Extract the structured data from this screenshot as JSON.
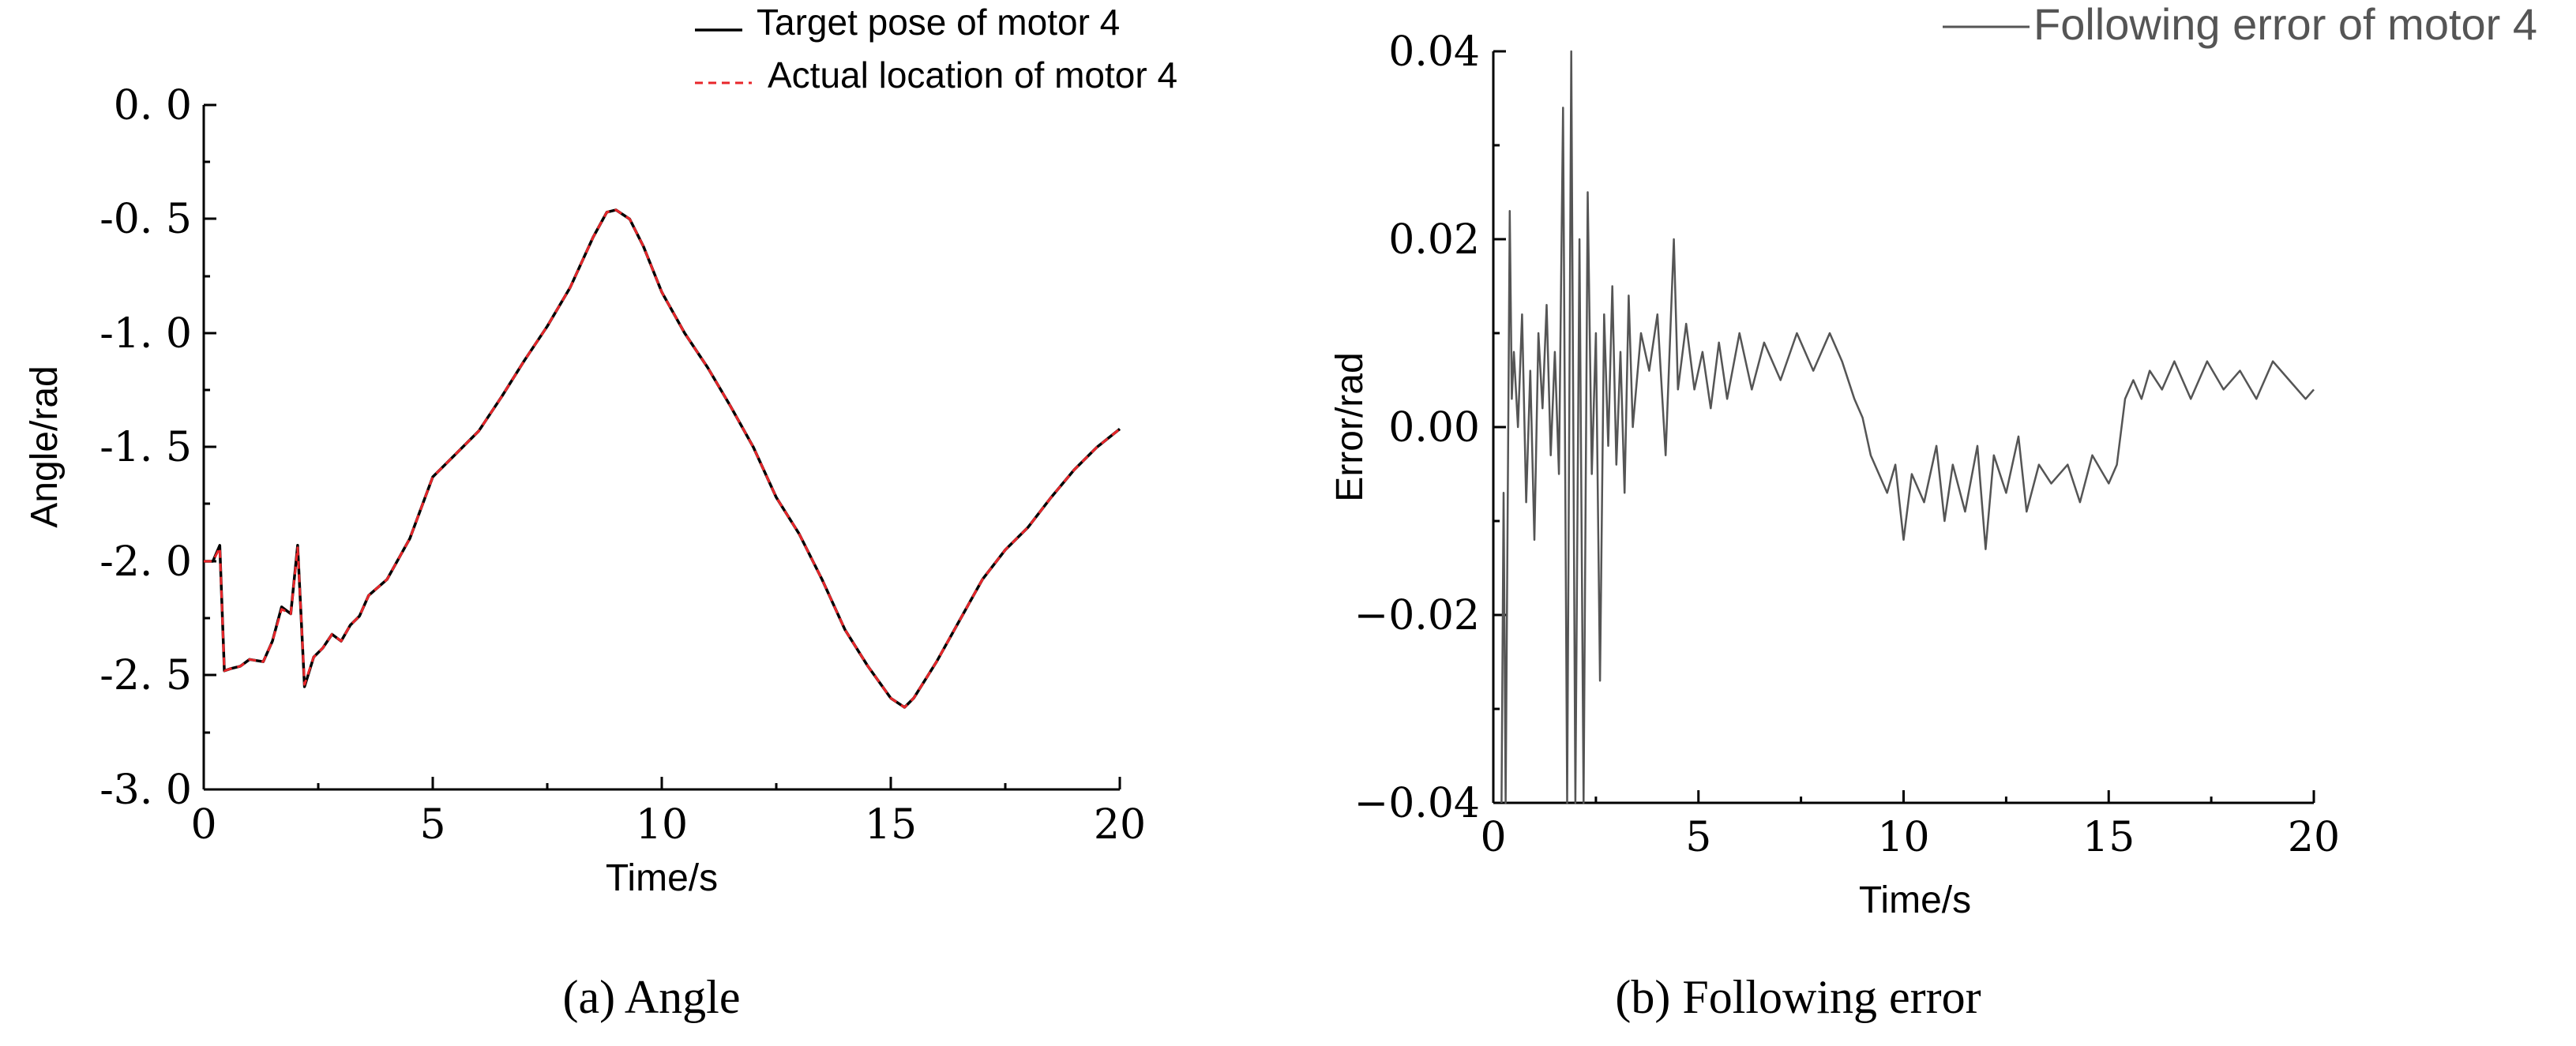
{
  "chart_data": [
    {
      "type": "line",
      "caption": "(a) Angle",
      "xlabel": "Time/s",
      "ylabel": "Angle/rad",
      "xlim": [
        0,
        20
      ],
      "ylim": [
        -3.0,
        0.0
      ],
      "x_ticks": [
        "0",
        "5",
        "10",
        "15",
        "20"
      ],
      "y_ticks": [
        "0. 0",
        "-0. 5",
        "-1. 0",
        "-1. 5",
        "-2. 0",
        "-2. 5",
        "-3. 0"
      ],
      "legend_position": "top-right",
      "grid": false,
      "series": [
        {
          "name": "Target pose of motor 4",
          "color": "#000000",
          "style": "solid",
          "points": [
            [
              0,
              -2.0
            ],
            [
              0.2,
              -2.0
            ],
            [
              0.35,
              -1.93
            ],
            [
              0.45,
              -2.48
            ],
            [
              0.6,
              -2.47
            ],
            [
              0.8,
              -2.46
            ],
            [
              1.0,
              -2.43
            ],
            [
              1.3,
              -2.44
            ],
            [
              1.5,
              -2.35
            ],
            [
              1.7,
              -2.2
            ],
            [
              1.9,
              -2.23
            ],
            [
              2.05,
              -1.93
            ],
            [
              2.2,
              -2.55
            ],
            [
              2.4,
              -2.42
            ],
            [
              2.6,
              -2.38
            ],
            [
              2.8,
              -2.32
            ],
            [
              3.0,
              -2.35
            ],
            [
              3.2,
              -2.28
            ],
            [
              3.4,
              -2.24
            ],
            [
              3.6,
              -2.15
            ],
            [
              4.0,
              -2.08
            ],
            [
              4.5,
              -1.9
            ],
            [
              5.0,
              -1.63
            ],
            [
              5.5,
              -1.53
            ],
            [
              6.0,
              -1.43
            ],
            [
              6.5,
              -1.28
            ],
            [
              7.0,
              -1.12
            ],
            [
              7.5,
              -0.97
            ],
            [
              8.0,
              -0.8
            ],
            [
              8.5,
              -0.58
            ],
            [
              8.8,
              -0.47
            ],
            [
              9.0,
              -0.46
            ],
            [
              9.3,
              -0.5
            ],
            [
              9.6,
              -0.62
            ],
            [
              10.0,
              -0.82
            ],
            [
              10.5,
              -1.0
            ],
            [
              11.0,
              -1.15
            ],
            [
              11.5,
              -1.32
            ],
            [
              12.0,
              -1.5
            ],
            [
              12.5,
              -1.72
            ],
            [
              13.0,
              -1.88
            ],
            [
              13.5,
              -2.08
            ],
            [
              14.0,
              -2.3
            ],
            [
              14.5,
              -2.46
            ],
            [
              15.0,
              -2.6
            ],
            [
              15.3,
              -2.64
            ],
            [
              15.5,
              -2.6
            ],
            [
              16.0,
              -2.44
            ],
            [
              16.5,
              -2.26
            ],
            [
              17.0,
              -2.08
            ],
            [
              17.5,
              -1.95
            ],
            [
              18.0,
              -1.85
            ],
            [
              18.5,
              -1.72
            ],
            [
              19.0,
              -1.6
            ],
            [
              19.5,
              -1.5
            ],
            [
              20.0,
              -1.42
            ]
          ]
        },
        {
          "name": "Actual location of motor 4",
          "color": "#e8262a",
          "style": "dashed",
          "points": [
            [
              0,
              -2.0
            ],
            [
              0.2,
              -2.0
            ],
            [
              0.35,
              -1.94
            ],
            [
              0.45,
              -2.48
            ],
            [
              0.6,
              -2.47
            ],
            [
              0.8,
              -2.46
            ],
            [
              1.0,
              -2.43
            ],
            [
              1.3,
              -2.44
            ],
            [
              1.5,
              -2.35
            ],
            [
              1.7,
              -2.21
            ],
            [
              1.9,
              -2.23
            ],
            [
              2.05,
              -1.94
            ],
            [
              2.2,
              -2.54
            ],
            [
              2.4,
              -2.42
            ],
            [
              2.6,
              -2.38
            ],
            [
              2.8,
              -2.32
            ],
            [
              3.0,
              -2.35
            ],
            [
              3.2,
              -2.28
            ],
            [
              3.4,
              -2.24
            ],
            [
              3.6,
              -2.15
            ],
            [
              4.0,
              -2.08
            ],
            [
              4.5,
              -1.9
            ],
            [
              5.0,
              -1.63
            ],
            [
              5.5,
              -1.53
            ],
            [
              6.0,
              -1.43
            ],
            [
              6.5,
              -1.28
            ],
            [
              7.0,
              -1.12
            ],
            [
              7.5,
              -0.97
            ],
            [
              8.0,
              -0.8
            ],
            [
              8.5,
              -0.58
            ],
            [
              8.8,
              -0.47
            ],
            [
              9.0,
              -0.46
            ],
            [
              9.3,
              -0.5
            ],
            [
              9.6,
              -0.62
            ],
            [
              10.0,
              -0.82
            ],
            [
              10.5,
              -1.0
            ],
            [
              11.0,
              -1.15
            ],
            [
              11.5,
              -1.32
            ],
            [
              12.0,
              -1.5
            ],
            [
              12.5,
              -1.72
            ],
            [
              13.0,
              -1.88
            ],
            [
              13.5,
              -2.08
            ],
            [
              14.0,
              -2.3
            ],
            [
              14.5,
              -2.46
            ],
            [
              15.0,
              -2.6
            ],
            [
              15.3,
              -2.64
            ],
            [
              15.5,
              -2.6
            ],
            [
              16.0,
              -2.44
            ],
            [
              16.5,
              -2.26
            ],
            [
              17.0,
              -2.08
            ],
            [
              17.5,
              -1.95
            ],
            [
              18.0,
              -1.85
            ],
            [
              18.5,
              -1.72
            ],
            [
              19.0,
              -1.6
            ],
            [
              19.5,
              -1.5
            ],
            [
              20.0,
              -1.42
            ]
          ]
        }
      ]
    },
    {
      "type": "line",
      "caption": "(b) Following error",
      "xlabel": "Time/s",
      "ylabel": "Error/rad",
      "xlim": [
        0,
        20
      ],
      "ylim": [
        -0.04,
        0.04
      ],
      "x_ticks": [
        "0",
        "5",
        "10",
        "15",
        "20"
      ],
      "y_ticks": [
        "0.04",
        "0.02",
        "0.00",
        "−0.02",
        "−0.04"
      ],
      "legend_position": "top-right",
      "grid": false,
      "series": [
        {
          "name": "Following error of motor 4",
          "color": "#555555",
          "style": "solid",
          "points": [
            [
              0.2,
              -0.04
            ],
            [
              0.25,
              -0.007
            ],
            [
              0.3,
              -0.04
            ],
            [
              0.4,
              0.023
            ],
            [
              0.45,
              0.003
            ],
            [
              0.5,
              0.008
            ],
            [
              0.6,
              0.0
            ],
            [
              0.7,
              0.012
            ],
            [
              0.8,
              -0.008
            ],
            [
              0.9,
              0.006
            ],
            [
              1.0,
              -0.012
            ],
            [
              1.1,
              0.01
            ],
            [
              1.2,
              0.002
            ],
            [
              1.3,
              0.013
            ],
            [
              1.4,
              -0.003
            ],
            [
              1.5,
              0.008
            ],
            [
              1.6,
              -0.005
            ],
            [
              1.7,
              0.034
            ],
            [
              1.8,
              -0.04
            ],
            [
              1.9,
              0.04
            ],
            [
              2.0,
              -0.04
            ],
            [
              2.1,
              0.02
            ],
            [
              2.2,
              -0.04
            ],
            [
              2.3,
              0.025
            ],
            [
              2.4,
              -0.005
            ],
            [
              2.5,
              0.01
            ],
            [
              2.6,
              -0.027
            ],
            [
              2.7,
              0.012
            ],
            [
              2.8,
              -0.002
            ],
            [
              2.9,
              0.015
            ],
            [
              3.0,
              -0.004
            ],
            [
              3.1,
              0.008
            ],
            [
              3.2,
              -0.007
            ],
            [
              3.3,
              0.014
            ],
            [
              3.4,
              0.0
            ],
            [
              3.6,
              0.01
            ],
            [
              3.8,
              0.006
            ],
            [
              4.0,
              0.012
            ],
            [
              4.2,
              -0.003
            ],
            [
              4.4,
              0.02
            ],
            [
              4.5,
              0.004
            ],
            [
              4.7,
              0.011
            ],
            [
              4.9,
              0.004
            ],
            [
              5.1,
              0.008
            ],
            [
              5.3,
              0.002
            ],
            [
              5.5,
              0.009
            ],
            [
              5.7,
              0.003
            ],
            [
              6.0,
              0.01
            ],
            [
              6.3,
              0.004
            ],
            [
              6.6,
              0.009
            ],
            [
              7.0,
              0.005
            ],
            [
              7.4,
              0.01
            ],
            [
              7.8,
              0.006
            ],
            [
              8.2,
              0.01
            ],
            [
              8.5,
              0.007
            ],
            [
              8.8,
              0.003
            ],
            [
              9.0,
              0.001
            ],
            [
              9.2,
              -0.003
            ],
            [
              9.4,
              -0.005
            ],
            [
              9.6,
              -0.007
            ],
            [
              9.8,
              -0.004
            ],
            [
              10.0,
              -0.012
            ],
            [
              10.2,
              -0.005
            ],
            [
              10.5,
              -0.008
            ],
            [
              10.8,
              -0.002
            ],
            [
              11.0,
              -0.01
            ],
            [
              11.2,
              -0.004
            ],
            [
              11.5,
              -0.009
            ],
            [
              11.8,
              -0.002
            ],
            [
              12.0,
              -0.013
            ],
            [
              12.2,
              -0.003
            ],
            [
              12.5,
              -0.007
            ],
            [
              12.8,
              -0.001
            ],
            [
              13.0,
              -0.009
            ],
            [
              13.3,
              -0.004
            ],
            [
              13.6,
              -0.006
            ],
            [
              14.0,
              -0.004
            ],
            [
              14.3,
              -0.008
            ],
            [
              14.6,
              -0.003
            ],
            [
              15.0,
              -0.006
            ],
            [
              15.2,
              -0.004
            ],
            [
              15.4,
              0.003
            ],
            [
              15.6,
              0.005
            ],
            [
              15.8,
              0.003
            ],
            [
              16.0,
              0.006
            ],
            [
              16.3,
              0.004
            ],
            [
              16.6,
              0.007
            ],
            [
              17.0,
              0.003
            ],
            [
              17.4,
              0.007
            ],
            [
              17.8,
              0.004
            ],
            [
              18.2,
              0.006
            ],
            [
              18.6,
              0.003
            ],
            [
              19.0,
              0.007
            ],
            [
              19.4,
              0.005
            ],
            [
              19.8,
              0.003
            ],
            [
              20.0,
              0.004
            ]
          ]
        }
      ]
    }
  ]
}
